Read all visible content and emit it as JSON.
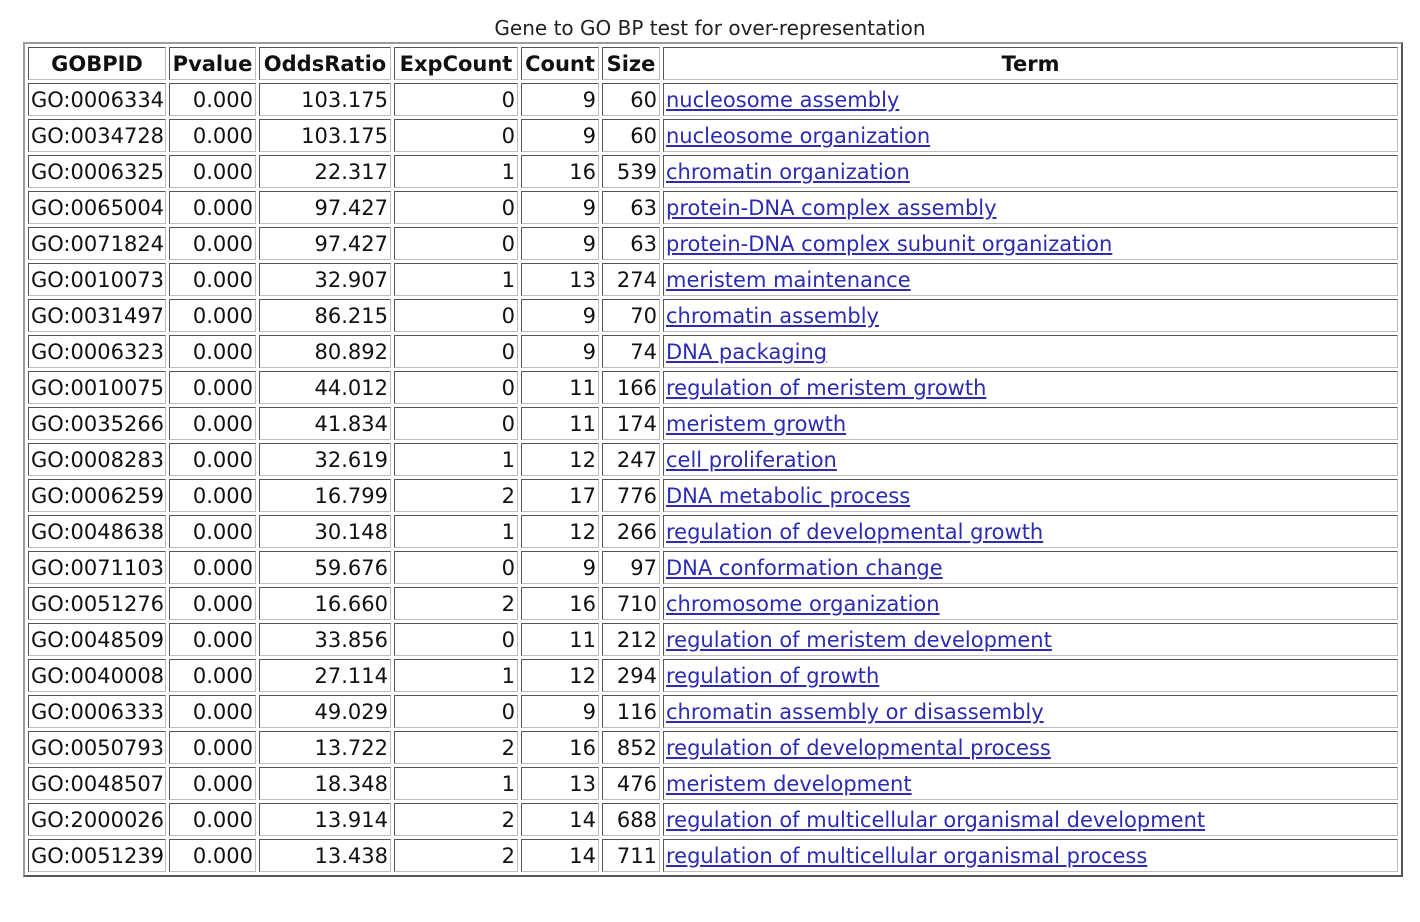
{
  "caption": "Gene to GO BP test for over-representation",
  "table": {
    "headers": [
      "GOBPID",
      "Pvalue",
      "OddsRatio",
      "ExpCount",
      "Count",
      "Size",
      "Term"
    ],
    "rows": [
      [
        "GO:0006334",
        "0.000",
        "103.175",
        "0",
        "9",
        "60",
        "nucleosome assembly"
      ],
      [
        "GO:0034728",
        "0.000",
        "103.175",
        "0",
        "9",
        "60",
        "nucleosome organization"
      ],
      [
        "GO:0006325",
        "0.000",
        "22.317",
        "1",
        "16",
        "539",
        "chromatin organization"
      ],
      [
        "GO:0065004",
        "0.000",
        "97.427",
        "0",
        "9",
        "63",
        "protein-DNA complex assembly"
      ],
      [
        "GO:0071824",
        "0.000",
        "97.427",
        "0",
        "9",
        "63",
        "protein-DNA complex subunit organization"
      ],
      [
        "GO:0010073",
        "0.000",
        "32.907",
        "1",
        "13",
        "274",
        "meristem maintenance"
      ],
      [
        "GO:0031497",
        "0.000",
        "86.215",
        "0",
        "9",
        "70",
        "chromatin assembly"
      ],
      [
        "GO:0006323",
        "0.000",
        "80.892",
        "0",
        "9",
        "74",
        "DNA packaging"
      ],
      [
        "GO:0010075",
        "0.000",
        "44.012",
        "0",
        "11",
        "166",
        "regulation of meristem growth"
      ],
      [
        "GO:0035266",
        "0.000",
        "41.834",
        "0",
        "11",
        "174",
        "meristem growth"
      ],
      [
        "GO:0008283",
        "0.000",
        "32.619",
        "1",
        "12",
        "247",
        "cell proliferation"
      ],
      [
        "GO:0006259",
        "0.000",
        "16.799",
        "2",
        "17",
        "776",
        "DNA metabolic process"
      ],
      [
        "GO:0048638",
        "0.000",
        "30.148",
        "1",
        "12",
        "266",
        "regulation of developmental growth"
      ],
      [
        "GO:0071103",
        "0.000",
        "59.676",
        "0",
        "9",
        "97",
        "DNA conformation change"
      ],
      [
        "GO:0051276",
        "0.000",
        "16.660",
        "2",
        "16",
        "710",
        "chromosome organization"
      ],
      [
        "GO:0048509",
        "0.000",
        "33.856",
        "0",
        "11",
        "212",
        "regulation of meristem development"
      ],
      [
        "GO:0040008",
        "0.000",
        "27.114",
        "1",
        "12",
        "294",
        "regulation of growth"
      ],
      [
        "GO:0006333",
        "0.000",
        "49.029",
        "0",
        "9",
        "116",
        "chromatin assembly or disassembly"
      ],
      [
        "GO:0050793",
        "0.000",
        "13.722",
        "2",
        "16",
        "852",
        "regulation of developmental process"
      ],
      [
        "GO:0048507",
        "0.000",
        "18.348",
        "1",
        "13",
        "476",
        "meristem development"
      ],
      [
        "GO:2000026",
        "0.000",
        "13.914",
        "2",
        "14",
        "688",
        "regulation of multicellular organismal development"
      ],
      [
        "GO:0051239",
        "0.000",
        "13.438",
        "2",
        "14",
        "711",
        "regulation of multicellular organismal process"
      ]
    ]
  },
  "colors": {
    "link": "#2b2bb3",
    "border_dark": "#555555",
    "border_light": "#bdbdbd"
  }
}
